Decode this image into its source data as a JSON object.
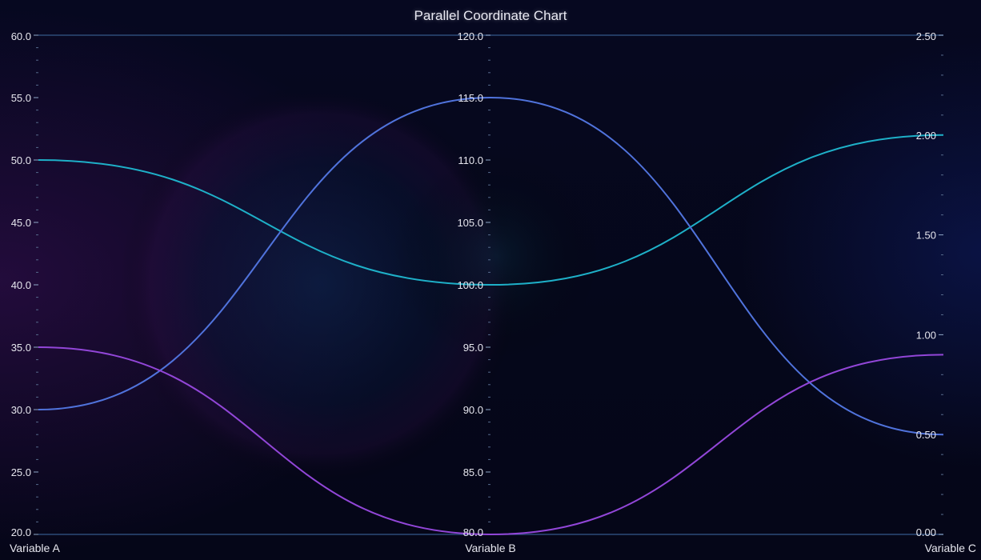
{
  "chart_data": {
    "type": "parallel-coordinates",
    "title": "Parallel Coordinate Chart",
    "axes": [
      {
        "name": "Variable A",
        "range": [
          20,
          60
        ],
        "ticks": [
          "20.0",
          "25.0",
          "30.0",
          "35.0",
          "40.0",
          "45.0",
          "50.0",
          "55.0",
          "60.0"
        ],
        "color_top": "#3db8d4",
        "color_bottom": "#c77de0"
      },
      {
        "name": "Variable B",
        "range": [
          80,
          120
        ],
        "ticks": [
          "80.0",
          "85.0",
          "90.0",
          "95.0",
          "100.0",
          "105.0",
          "110.0",
          "115.0",
          "120.0"
        ],
        "color_top": "#3db8d4",
        "color_bottom": "#c77de0"
      },
      {
        "name": "Variable C",
        "range": [
          0,
          2.5
        ],
        "ticks": [
          "0.00",
          "0.50",
          "1.00",
          "1.50",
          "2.00",
          "2.50"
        ],
        "color_top": "#3db8d4",
        "color_bottom": "#c77de0"
      }
    ],
    "series": [
      {
        "values": [
          50,
          100,
          2.0
        ],
        "color": "#1eb0c8"
      },
      {
        "values": [
          30,
          115,
          0.5
        ],
        "color": "#5073dc"
      },
      {
        "values": [
          35,
          80,
          0.9
        ],
        "color": "#9246d8"
      }
    ],
    "grid": false
  },
  "colors": {
    "background": "#04061a",
    "frame": "#2c4a78",
    "text": "#e6e6ee"
  }
}
